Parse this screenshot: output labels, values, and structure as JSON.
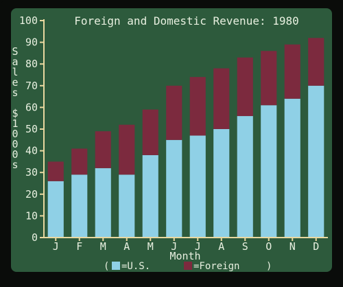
{
  "chart_data": {
    "type": "bar",
    "stacked": true,
    "title": "Foreign and Domestic Revenue: 1980",
    "ylabel": "Sales $1000s",
    "xlabel": "Month",
    "categories": [
      "J",
      "F",
      "M",
      "A",
      "M",
      "J",
      "J",
      "A",
      "S",
      "O",
      "N",
      "D"
    ],
    "series": [
      {
        "name": "U.S.",
        "color": "#8fd0e6",
        "values": [
          26,
          29,
          32,
          29,
          38,
          45,
          47,
          50,
          56,
          61,
          64,
          70
        ]
      },
      {
        "name": "Foreign",
        "color": "#7c2a3e",
        "values": [
          9,
          12,
          17,
          23,
          21,
          25,
          27,
          28,
          27,
          25,
          25,
          22
        ]
      }
    ],
    "ylim": [
      0,
      100
    ],
    "yticks": [
      0,
      10,
      20,
      30,
      40,
      50,
      60,
      70,
      80,
      90,
      100
    ],
    "legend": {
      "placement": "bottom",
      "prefix": "(",
      "us_label": "=U.S.",
      "foreign_label": "=Foreign",
      "suffix": ")"
    },
    "colors": {
      "background": "#2d5a3c",
      "text": "#e8f0e0",
      "axis": "#e8d8a0"
    }
  }
}
